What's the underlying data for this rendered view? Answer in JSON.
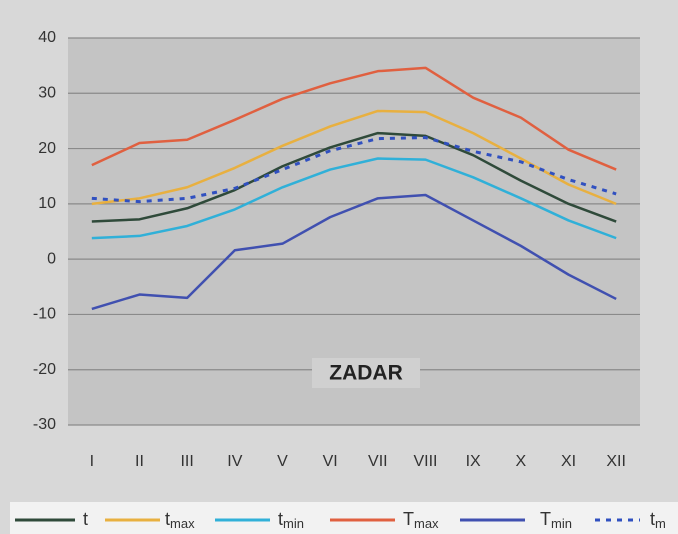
{
  "chart_data": {
    "type": "line",
    "annotation": "ZADAR",
    "categories": [
      "I",
      "II",
      "III",
      "IV",
      "V",
      "VI",
      "VII",
      "VIII",
      "IX",
      "X",
      "XI",
      "XII"
    ],
    "series": [
      {
        "name": "t",
        "color": "#2f4a3a",
        "dash": false,
        "values": [
          6.8,
          7.2,
          9.2,
          12.5,
          16.8,
          20.2,
          22.8,
          22.3,
          18.8,
          14.2,
          10,
          6.8
        ]
      },
      {
        "name": "tmax",
        "color": "#e8b040",
        "dash": false,
        "values": [
          10,
          11,
          13,
          16.5,
          20.5,
          24,
          26.8,
          26.6,
          22.8,
          18.2,
          13.5,
          10
        ]
      },
      {
        "name": "tmin",
        "color": "#30b0d8",
        "dash": false,
        "values": [
          3.8,
          4.2,
          6,
          9,
          13,
          16.2,
          18.2,
          18,
          14.8,
          11,
          7,
          3.8
        ]
      },
      {
        "name": "Tmax",
        "color": "#e06040",
        "dash": false,
        "values": [
          17,
          21,
          21.6,
          25.2,
          29,
          31.8,
          34,
          34.6,
          29.2,
          25.6,
          19.8,
          16.2
        ]
      },
      {
        "name": "Tmin",
        "color": "#4050b0",
        "dash": false,
        "values": [
          -9,
          -6.4,
          -7,
          1.6,
          2.8,
          7.6,
          11,
          11.6,
          7,
          2.4,
          -2.8,
          -7.2
        ]
      },
      {
        "name": "tm",
        "color": "#3050c0",
        "dash": true,
        "values": [
          11,
          10.4,
          11,
          12.8,
          16.2,
          19.6,
          21.8,
          22,
          19.5,
          17.6,
          14.4,
          11.8
        ]
      }
    ],
    "ylim": [
      -30,
      40
    ],
    "yticks": [
      -30,
      -20,
      -10,
      0,
      10,
      20,
      30,
      40
    ],
    "grid": true,
    "legend": "bottom"
  }
}
